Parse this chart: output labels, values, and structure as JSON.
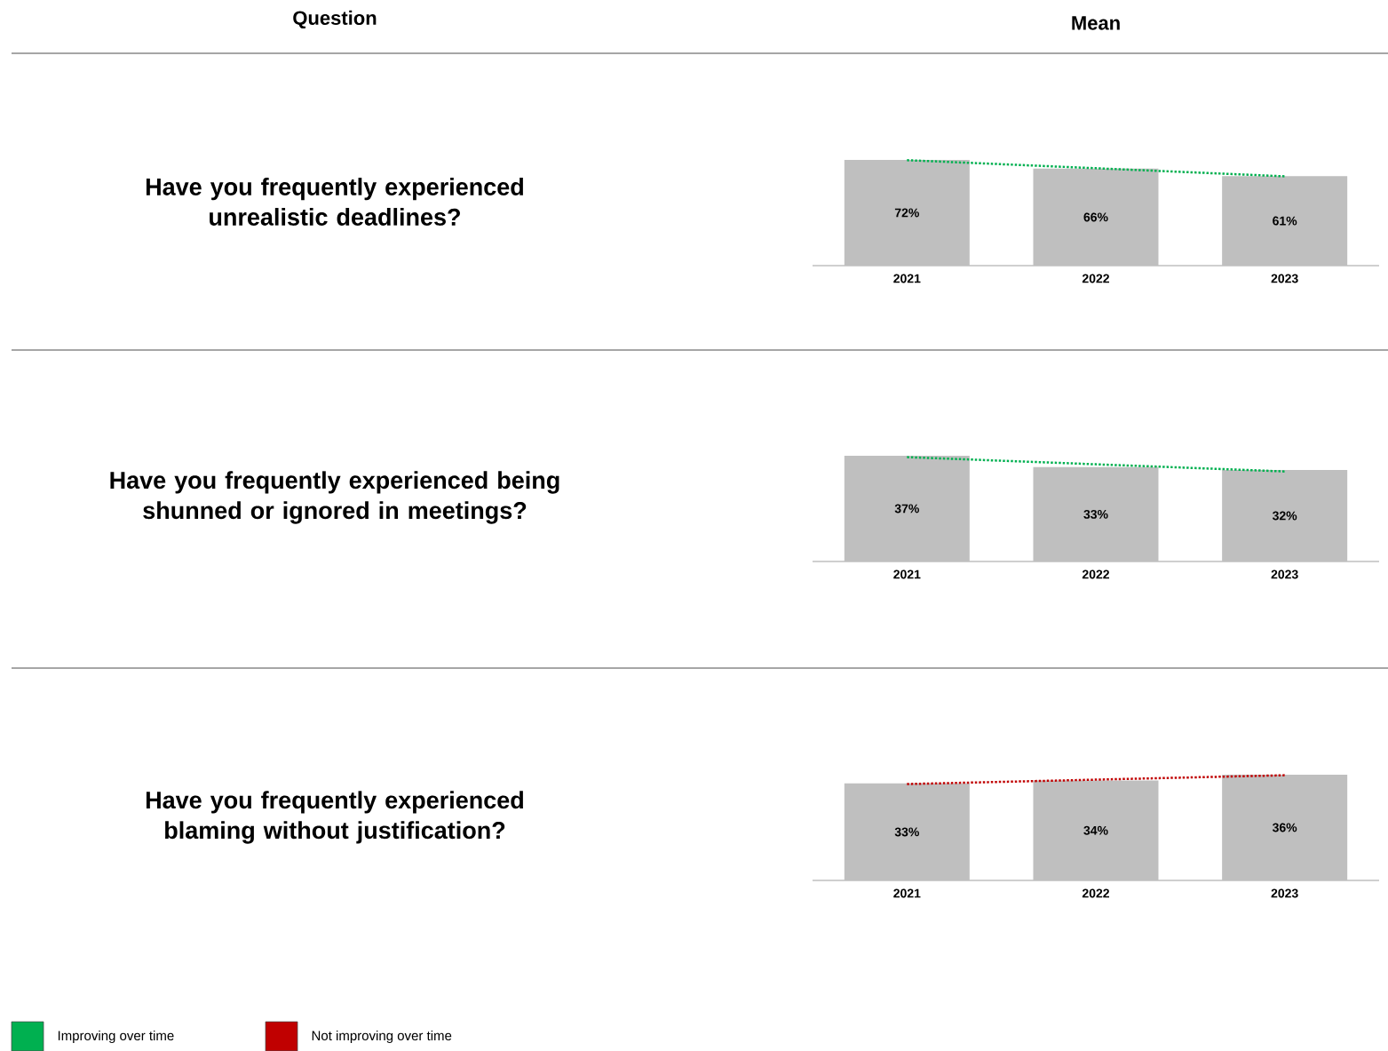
{
  "chart_data": [
    {
      "type": "other",
      "annotations": [
        "Question",
        "Mean"
      ]
    },
    {
      "type": "bar",
      "ylabel": "Have you frequently experienced unrealistic deadlines?",
      "categories": [
        "2021",
        "2022",
        "2023"
      ],
      "series": [
        {
          "type": "bar",
          "color": "#bfbfbf",
          "values": [
            72,
            66,
            61
          ],
          "value_labels": [
            "72%",
            "66%",
            "61%"
          ]
        },
        {
          "type": "line",
          "color": "#00b050",
          "line_style": "dotted",
          "values": [
            71.8,
            66.3,
            60.8
          ]
        }
      ]
    },
    {
      "type": "bar",
      "ylabel": "Have you frequently experienced being shunned or ignored in meetings?",
      "categories": [
        "2021",
        "2022",
        "2023"
      ],
      "series": [
        {
          "type": "bar",
          "color": "#bfbfbf",
          "values": [
            37,
            33,
            32
          ],
          "value_labels": [
            "37%",
            "33%",
            "32%"
          ]
        },
        {
          "type": "line",
          "color": "#00b050",
          "line_style": "dotted",
          "values": [
            36.5,
            34,
            31.5
          ]
        }
      ]
    },
    {
      "type": "bar",
      "ylabel": "Have you frequently experienced blaming without justification?",
      "categories": [
        "2021",
        "2022",
        "2023"
      ],
      "series": [
        {
          "type": "bar",
          "color": "#bfbfbf",
          "values": [
            33,
            34,
            36
          ],
          "value_labels": [
            "33%",
            "34%",
            "36%"
          ]
        },
        {
          "type": "line",
          "color": "#c00000",
          "line_style": "dotted",
          "values": [
            32.8,
            34.3,
            35.8
          ]
        }
      ]
    },
    {
      "type": "other",
      "categories": [
        "Improving over time",
        "Not improving over time"
      ],
      "colors": [
        "#00b050",
        "#c00000"
      ]
    }
  ]
}
